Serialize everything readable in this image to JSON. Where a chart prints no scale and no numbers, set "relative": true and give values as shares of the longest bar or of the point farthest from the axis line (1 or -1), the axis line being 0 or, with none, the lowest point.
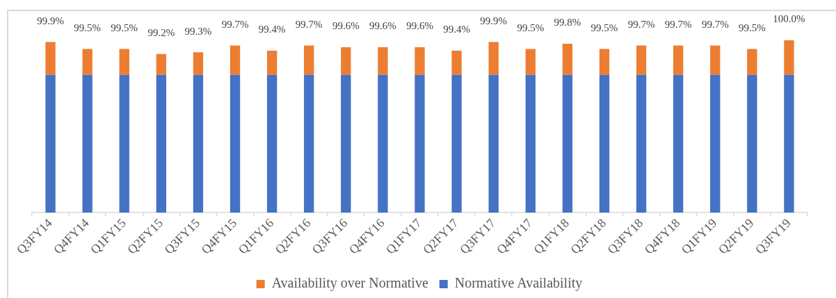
{
  "chart_data": {
    "type": "bar",
    "stacked": true,
    "relative": true,
    "legend": "bottom",
    "categories": [
      "Q3FY14",
      "Q4FY14",
      "Q1FY15",
      "Q2FY15",
      "Q3FY15",
      "Q4FY15",
      "Q1FY16",
      "Q2FY16",
      "Q3FY16",
      "Q4FY16",
      "Q1FY17",
      "Q2FY17",
      "Q3FY17",
      "Q4FY17",
      "Q1FY18",
      "Q2FY18",
      "Q3FY18",
      "Q4FY18",
      "Q1FY19",
      "Q2FY19",
      "Q3FY19"
    ],
    "series": [
      {
        "name": "Normative Availability",
        "color": "#4472c4",
        "values": [
          0.8,
          0.8,
          0.8,
          0.8,
          0.8,
          0.8,
          0.8,
          0.8,
          0.8,
          0.8,
          0.8,
          0.8,
          0.8,
          0.8,
          0.8,
          0.8,
          0.8,
          0.8,
          0.8,
          0.8,
          0.8
        ]
      },
      {
        "name": "Availability over Normative",
        "color": "#ed7d31",
        "values": [
          0.19,
          0.15,
          0.15,
          0.12,
          0.13,
          0.17,
          0.14,
          0.17,
          0.16,
          0.16,
          0.16,
          0.14,
          0.19,
          0.15,
          0.18,
          0.15,
          0.17,
          0.17,
          0.17,
          0.15,
          0.2
        ]
      }
    ],
    "annotations": [
      {
        "text": "99.9%",
        "x": "Q3FY14",
        "y": 0.99
      },
      {
        "text": "99.5%",
        "x": "Q4FY14",
        "y": 0.95
      },
      {
        "text": "99.5%",
        "x": "Q1FY15",
        "y": 0.95
      },
      {
        "text": "99.2%",
        "x": "Q2FY15",
        "y": 0.92
      },
      {
        "text": "99.3%",
        "x": "Q3FY15",
        "y": 0.93
      },
      {
        "text": "99.7%",
        "x": "Q4FY15",
        "y": 0.97
      },
      {
        "text": "99.4%",
        "x": "Q1FY16",
        "y": 0.94
      },
      {
        "text": "99.7%",
        "x": "Q2FY16",
        "y": 0.97
      },
      {
        "text": "99.6%",
        "x": "Q3FY16",
        "y": 0.96
      },
      {
        "text": "99.6%",
        "x": "Q4FY16",
        "y": 0.96
      },
      {
        "text": "99.6%",
        "x": "Q1FY17",
        "y": 0.96
      },
      {
        "text": "99.4%",
        "x": "Q2FY17",
        "y": 0.94
      },
      {
        "text": "99.9%",
        "x": "Q3FY17",
        "y": 0.99
      },
      {
        "text": "99.5%",
        "x": "Q4FY17",
        "y": 0.95
      },
      {
        "text": "99.8%",
        "x": "Q1FY18",
        "y": 0.98
      },
      {
        "text": "99.5%",
        "x": "Q2FY18",
        "y": 0.95
      },
      {
        "text": "99.7%",
        "x": "Q3FY18",
        "y": 0.97
      },
      {
        "text": "99.7%",
        "x": "Q4FY18",
        "y": 0.97
      },
      {
        "text": "99.7%",
        "x": "Q1FY19",
        "y": 0.97
      },
      {
        "text": "99.5%",
        "x": "Q2FY19",
        "y": 0.95
      },
      {
        "text": "100.0%",
        "x": "Q3FY19",
        "y": 1
      }
    ]
  }
}
